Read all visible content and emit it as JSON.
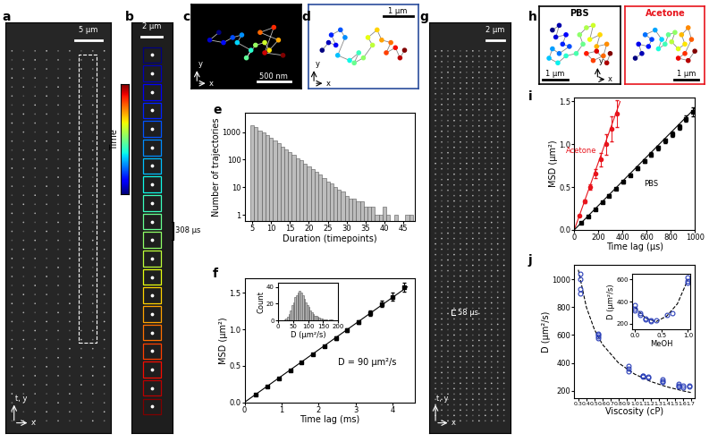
{
  "panel_labels": [
    "a",
    "b",
    "c",
    "d",
    "e",
    "f",
    "g",
    "h",
    "i",
    "j"
  ],
  "time_bar": "Time",
  "images": {
    "a": {
      "scale_bar": "5 µm",
      "axes": {
        "vertical": "t, y",
        "horizontal": "x"
      }
    },
    "b": {
      "scale_bar": "2 µm",
      "interval": "308 µs"
    },
    "g": {
      "scale_bar": "2 µm",
      "interval": "58 µs",
      "axes": {
        "vertical": "t, y",
        "horizontal": "x"
      }
    }
  },
  "trajectories": {
    "c": {
      "scale_bar": "500 nm",
      "axes": {
        "vertical": "y",
        "horizontal": "x"
      },
      "x": [
        0.2,
        0.1,
        0.25,
        0.35,
        0.45,
        0.4,
        0.55,
        0.5,
        0.6,
        0.7,
        0.75,
        0.85,
        0.65,
        0.8,
        0.7,
        0.9
      ],
      "y": [
        0.75,
        0.6,
        0.55,
        0.65,
        0.7,
        0.55,
        0.4,
        0.25,
        0.5,
        0.55,
        0.4,
        0.6,
        0.75,
        0.85,
        0.35,
        0.3
      ]
    },
    "d": {
      "scale_bar": "1 µm",
      "axes": {
        "vertical": "y",
        "horizontal": "x"
      },
      "x": [
        0.05,
        0.12,
        0.2,
        0.15,
        0.25,
        0.3,
        0.22,
        0.35,
        0.45,
        0.4,
        0.5,
        0.6,
        0.55,
        0.65,
        0.7,
        0.8,
        0.75,
        0.85,
        0.9,
        0.95
      ],
      "y": [
        0.4,
        0.55,
        0.5,
        0.7,
        0.8,
        0.65,
        0.3,
        0.2,
        0.35,
        0.15,
        0.25,
        0.5,
        0.65,
        0.8,
        0.6,
        0.55,
        0.35,
        0.45,
        0.25,
        0.4
      ]
    },
    "h": [
      {
        "name": "PBS",
        "color": "#000000",
        "scale_bar": "1 µm",
        "axes": {
          "vertical": "y",
          "horizontal": "x"
        },
        "x": [
          0.1,
          0.2,
          0.15,
          0.3,
          0.25,
          0.35,
          0.2,
          0.1,
          0.05,
          0.18,
          0.3,
          0.45,
          0.55,
          0.5,
          0.6,
          0.7,
          0.65,
          0.8,
          0.75,
          0.9,
          0.85,
          0.7,
          0.6,
          0.75,
          0.9,
          0.95
        ],
        "y": [
          0.8,
          0.9,
          0.65,
          0.7,
          0.5,
          0.45,
          0.3,
          0.4,
          0.2,
          0.1,
          0.25,
          0.3,
          0.5,
          0.7,
          0.85,
          0.9,
          0.6,
          0.7,
          0.45,
          0.5,
          0.25,
          0.15,
          0.3,
          0.35,
          0.1,
          0.3
        ]
      },
      {
        "name": "Acetone",
        "color": "#e8141c",
        "scale_bar": "1 µm",
        "x": [
          0.05,
          0.15,
          0.1,
          0.25,
          0.3,
          0.2,
          0.35,
          0.45,
          0.4,
          0.5,
          0.55,
          0.65,
          0.6,
          0.7,
          0.8,
          0.75,
          0.85,
          0.9,
          0.8,
          0.7,
          0.85,
          0.95
        ],
        "y": [
          0.2,
          0.3,
          0.5,
          0.45,
          0.6,
          0.7,
          0.8,
          0.6,
          0.4,
          0.5,
          0.7,
          0.75,
          0.55,
          0.4,
          0.5,
          0.7,
          0.85,
          0.6,
          0.3,
          0.2,
          0.15,
          0.35
        ]
      }
    ]
  },
  "chart_data": [
    {
      "type": "histogram",
      "xlabel": "Duration (timepoints)",
      "ylabel": "Number of trajectories",
      "bins": [
        4.5,
        5.5,
        6.5,
        7.5,
        8.5,
        9.5,
        10.5,
        11.5,
        12.5,
        13.5,
        14.5,
        15.5,
        16.5,
        17.5,
        18.5,
        19.5,
        20.5,
        21.5,
        22.5,
        23.5,
        24.5,
        25.5,
        26.5,
        27.5,
        28.5,
        29.5,
        30.5,
        31.5,
        32.5,
        33.5,
        34.5,
        35.5,
        36.5,
        37.5,
        38.5,
        39.5,
        40.5,
        41.5,
        42.5,
        43.5,
        44.5,
        45.5,
        46.5,
        47.5
      ],
      "counts": [
        1800,
        1500,
        1150,
        950,
        800,
        620,
        480,
        390,
        300,
        240,
        190,
        150,
        115,
        95,
        70,
        55,
        45,
        35,
        28,
        22,
        16,
        14,
        10,
        8,
        7,
        5,
        4,
        4,
        3,
        3,
        2,
        2,
        2,
        1,
        1,
        2,
        1,
        0,
        1,
        0,
        0,
        1,
        1
      ],
      "color": "#bdbdbd",
      "log": "y",
      "xlim": [
        3,
        48
      ],
      "xticks": [
        5,
        10,
        15,
        20,
        25,
        30,
        35,
        40,
        45
      ],
      "ylim": [
        0.6,
        5000
      ],
      "yticks": [
        1,
        10,
        100,
        1000
      ]
    },
    {
      "type": "scatter",
      "xlabel": "Time lag (ms)",
      "ylabel": "MSD (µm²)",
      "annotation": "D = 90 µm²/s",
      "series": [
        {
          "color": "#000000",
          "marker": "square",
          "line_style": "solid",
          "x": [
            0.308,
            0.616,
            0.924,
            1.232,
            1.54,
            1.848,
            2.156,
            2.464,
            2.772,
            3.08,
            3.388,
            3.696,
            4.004,
            4.312
          ],
          "values": [
            0.11,
            0.22,
            0.33,
            0.44,
            0.55,
            0.66,
            0.77,
            0.88,
            0.99,
            1.1,
            1.22,
            1.35,
            1.45,
            1.58
          ],
          "errors": [
            0.005,
            0.006,
            0.008,
            0.01,
            0.012,
            0.014,
            0.016,
            0.02,
            0.024,
            0.028,
            0.035,
            0.04,
            0.05,
            0.06
          ],
          "fit": {
            "x": [
              0,
              4.4
            ],
            "y": [
              0,
              1.584
            ],
            "color": "#000000"
          }
        }
      ],
      "xlim": [
        0,
        4.6
      ],
      "xticks": [
        0,
        1,
        2,
        3,
        4
      ],
      "ylim": [
        0,
        1.7
      ],
      "yticks": [
        {
          "value": 0,
          "label": "0.0"
        },
        0.5,
        {
          "value": 1,
          "label": "1.0"
        },
        1.5
      ]
    },
    {
      "type": "histogram",
      "xlabel": "D (µm²/s)",
      "ylabel": "Count",
      "bins": [
        20,
        25,
        30,
        35,
        40,
        45,
        50,
        55,
        60,
        65,
        70,
        75,
        80,
        85,
        90,
        95,
        100,
        105,
        110,
        115,
        120,
        125,
        130,
        135,
        140,
        145,
        150,
        155,
        160,
        165,
        170,
        175,
        180
      ],
      "counts": [
        1,
        2,
        4,
        8,
        12,
        18,
        22,
        28,
        30,
        33,
        35,
        33,
        30,
        26,
        22,
        18,
        16,
        12,
        10,
        8,
        6,
        5,
        4,
        3,
        2,
        2,
        1,
        1,
        1,
        0,
        1,
        1
      ],
      "color": "#bdbdbd",
      "xlim": [
        0,
        200
      ],
      "xticks": [
        0,
        50,
        100,
        150,
        200
      ],
      "ylim": [
        0,
        45
      ],
      "yticks": [
        0,
        20,
        40
      ]
    },
    {
      "type": "scatter",
      "xlabel": "Time lag (µs)",
      "ylabel": "MSD (µm²)",
      "series": [
        {
          "name": "Acetone",
          "color": "#e8141c",
          "marker": "circle",
          "line_style": "solid",
          "x": [
            44,
            88,
            132,
            176,
            220,
            264,
            308,
            352
          ],
          "values": [
            0.17,
            0.33,
            0.5,
            0.66,
            0.82,
            1.0,
            1.18,
            1.36
          ],
          "errors": [
            0.01,
            0.02,
            0.03,
            0.05,
            0.08,
            0.12,
            0.15,
            0.16
          ],
          "fit": {
            "x": [
              0,
              380
            ],
            "y": [
              0,
              1.5
            ],
            "color": "#e8141c"
          }
        },
        {
          "name": "PBS",
          "color": "#000000",
          "marker": "square",
          "line_style": "solid",
          "x": [
            58,
            116,
            174,
            232,
            290,
            348,
            406,
            464,
            522,
            580,
            638,
            696,
            754,
            812,
            870,
            928,
            986
          ],
          "values": [
            0.08,
            0.16,
            0.24,
            0.32,
            0.4,
            0.48,
            0.56,
            0.64,
            0.72,
            0.8,
            0.88,
            0.96,
            1.04,
            1.12,
            1.2,
            1.3,
            1.38
          ],
          "errors": [
            0.005,
            0.006,
            0.008,
            0.01,
            0.012,
            0.014,
            0.016,
            0.018,
            0.02,
            0.022,
            0.024,
            0.026,
            0.028,
            0.03,
            0.035,
            0.04,
            0.05
          ],
          "fit": {
            "x": [
              0,
              1000
            ],
            "y": [
              0,
              1.42
            ],
            "color": "#000000"
          }
        }
      ],
      "xlim": [
        0,
        1000
      ],
      "xticks": [
        0,
        200,
        400,
        600,
        800,
        1000
      ],
      "ylim": [
        0,
        1.55
      ],
      "yticks": [
        {
          "value": 0,
          "label": "0.0"
        },
        0.5,
        {
          "value": 1,
          "label": "1.0"
        },
        1.5
      ]
    },
    {
      "type": "scatter",
      "xlabel": "Viscosity (cP)",
      "ylabel": "D (µm²/s)",
      "series": [
        {
          "color": "#2a3fb8",
          "marker": "open_circle",
          "line_style": "dashed",
          "x": [
            0.32,
            0.32,
            0.32,
            0.32,
            0.55,
            0.55,
            0.55,
            0.55,
            0.93,
            0.93,
            0.93,
            1.1,
            1.1,
            1.1,
            1.17,
            1.17,
            1.35,
            1.35,
            1.35,
            1.55,
            1.55,
            1.55,
            1.6,
            1.6,
            1.68,
            1.68
          ],
          "values": [
            1040,
            1000,
            930,
            900,
            610,
            600,
            590,
            580,
            380,
            360,
            340,
            310,
            305,
            300,
            300,
            295,
            280,
            270,
            260,
            250,
            240,
            230,
            235,
            225,
            240,
            230
          ],
          "fit": {
            "x": [
              0.3,
              0.4,
              0.5,
              0.6,
              0.8,
              1.0,
              1.2,
              1.4,
              1.6,
              1.7
            ],
            "y": [
              1067,
              800,
              640,
              533,
              400,
              320,
              267,
              229,
              200,
              188
            ],
            "color": "#000000"
          }
        }
      ],
      "xlim": [
        0.25,
        1.75
      ],
      "xticks": [
        0.3,
        0.4,
        0.5,
        0.6,
        0.7,
        0.8,
        0.9,
        {
          "value": 1,
          "label": "1.0"
        },
        1.1,
        1.2,
        1.3,
        1.4,
        1.5,
        1.6,
        1.7
      ],
      "ylim": [
        150,
        1100
      ],
      "yticks": [
        200,
        400,
        600,
        800,
        1000
      ]
    },
    {
      "type": "scatter",
      "xlabel": "MeOH",
      "ylabel": "D (µm²/s)",
      "series": [
        {
          "color": "#2a3fb8",
          "marker": "open_circle",
          "line_style": "dashed",
          "x": [
            0,
            0,
            0,
            0.1,
            0.1,
            0.2,
            0.2,
            0.3,
            0.3,
            0.4,
            0.6,
            0.7,
            1,
            1,
            1
          ],
          "values": [
            370,
            340,
            320,
            300,
            280,
            250,
            240,
            230,
            220,
            230,
            280,
            300,
            620,
            590,
            570
          ],
          "fit": {
            "x": [
              0,
              0.2,
              0.4,
              0.6,
              0.8,
              1.0
            ],
            "y": [
              350,
              250,
              220,
              270,
              380,
              600
            ],
            "color": "#000000"
          }
        }
      ],
      "xlim": [
        -0.05,
        1.05
      ],
      "xticks": [
        {
          "value": 0,
          "label": "0.0"
        },
        0.5,
        {
          "value": 1,
          "label": "1.0"
        }
      ],
      "ylim": [
        150,
        650
      ],
      "yticks": [
        200,
        400,
        600
      ]
    }
  ]
}
